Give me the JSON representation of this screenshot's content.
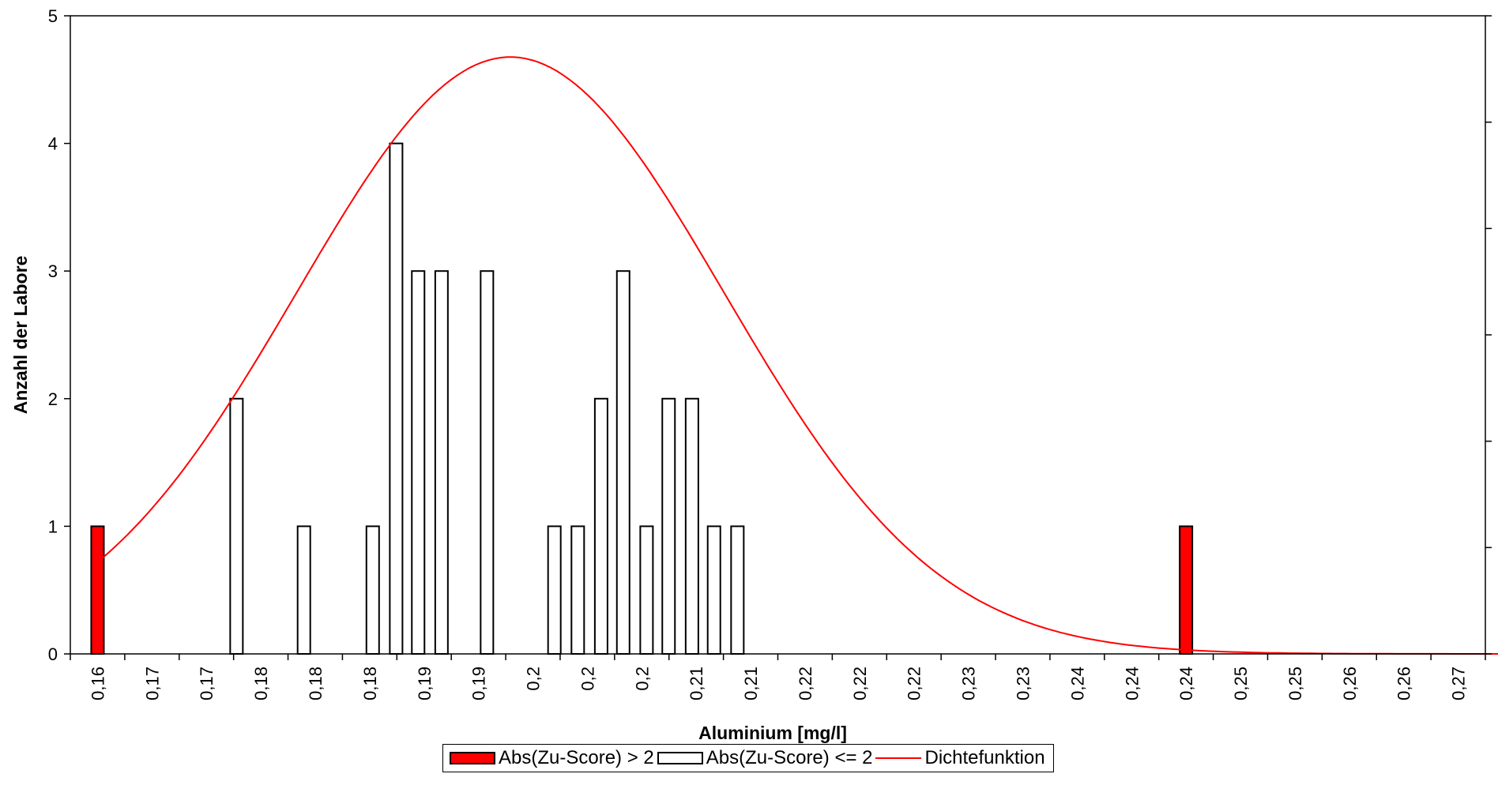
{
  "chart_data": {
    "type": "bar",
    "title": "",
    "xlabel": "Aluminium [mg/l]",
    "ylabel": "Anzahl der Labore",
    "ylim": [
      0,
      5
    ],
    "yticks": [
      "0",
      "1",
      "2",
      "3",
      "4",
      "5"
    ],
    "grid": false,
    "legend_position": "bottom-center",
    "categories": [
      "0,16",
      "0,17",
      "0,17",
      "0,18",
      "0,18",
      "0,18",
      "0,19",
      "0,19",
      "0,2",
      "0,2",
      "0,2",
      "0,21",
      "0,21",
      "0,22",
      "0,22",
      "0,22",
      "0,23",
      "0,23",
      "0,24",
      "0,24",
      "0,24",
      "0,25",
      "0,25",
      "0,26",
      "0,26",
      "0,27"
    ],
    "bin_centers": [
      0.1605,
      0.1606,
      0.1772,
      0.1836,
      0.1902,
      0.1918,
      0.1935,
      0.1953,
      0.1986,
      0.2051,
      0.2068,
      0.2085,
      0.2101,
      0.2118,
      0.2134,
      0.215,
      0.2167,
      0.2183,
      0.2396
    ],
    "series": [
      {
        "name": "Abs(Zu-Score) > 2",
        "color": "#ff0000",
        "x": [
          0.1605,
          0.2396
        ],
        "values": [
          1,
          1
        ]
      },
      {
        "name": "Abs(Zu-Score) <= 2",
        "color": "#ffffff",
        "x": [
          0.1706,
          0.1755,
          0.1805,
          0.1822,
          0.1838,
          0.1855,
          0.1888,
          0.1937,
          0.1954,
          0.1971,
          0.1987,
          0.2004,
          0.202,
          0.2037,
          0.2053,
          0.207,
          0.2086
        ],
        "values": [
          2,
          1,
          1,
          4,
          3,
          3,
          3,
          1,
          1,
          2,
          3,
          1,
          2,
          2,
          1,
          1,
          0
        ]
      },
      {
        "name": "Dichtefunktion",
        "color": "#ff0000",
        "type": "line",
        "mean": 0.1905,
        "sd": 0.0155,
        "scale": 0.1817
      }
    ]
  }
}
